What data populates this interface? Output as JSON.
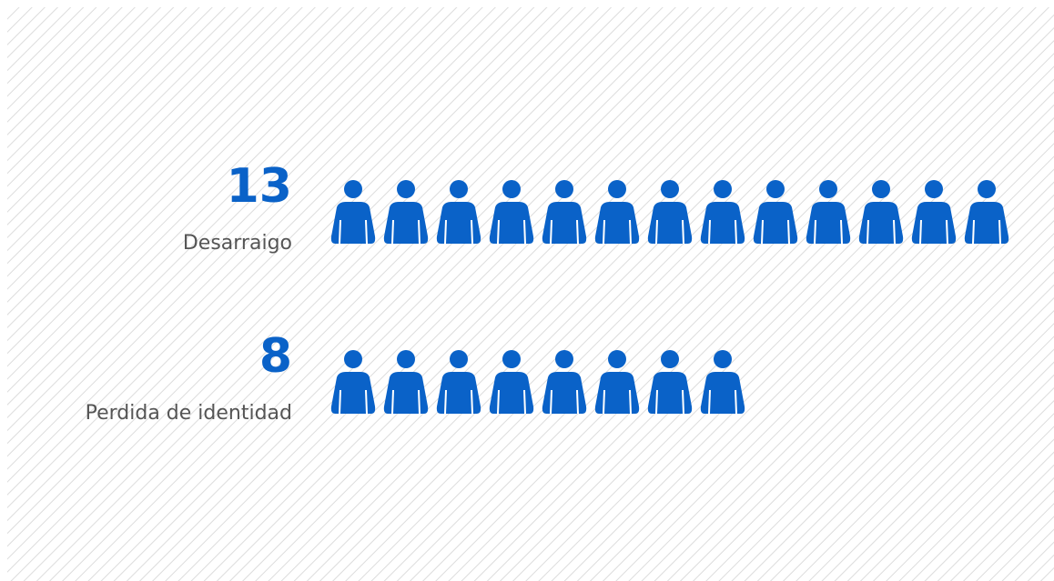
{
  "chart_data": {
    "type": "pictograph",
    "categories": [
      "Desarraigo",
      "Perdida de identidad"
    ],
    "values": [
      13,
      8
    ],
    "color": "#0a62c8"
  }
}
